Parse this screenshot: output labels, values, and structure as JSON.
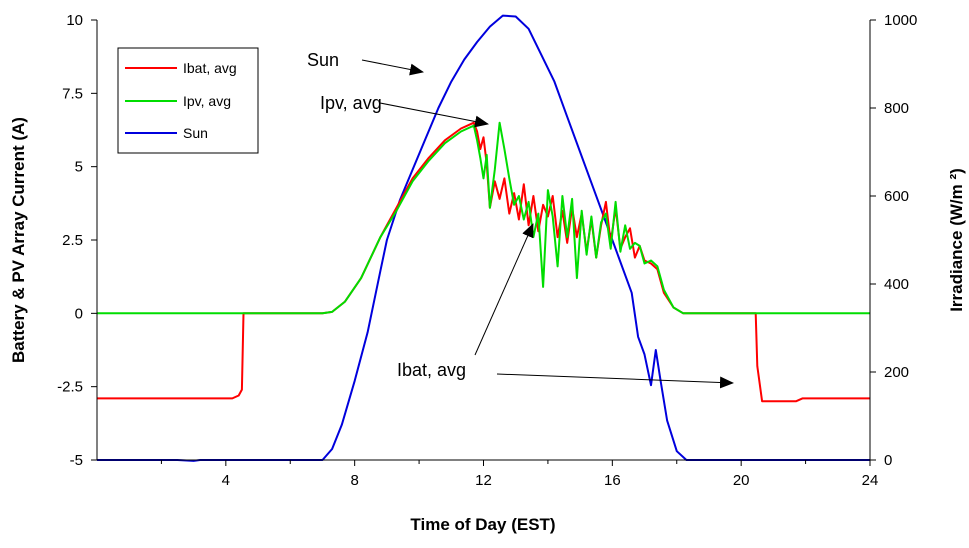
{
  "chart_data": {
    "type": "line",
    "xlabel": "Time of Day (EST)",
    "ylabel": "Battery & PV Array Current (A)",
    "y2label": "Irradiance (W/m ²)",
    "xlim": [
      0,
      24
    ],
    "ylim": [
      -5,
      10
    ],
    "y2lim": [
      0,
      1000
    ],
    "x_ticks": [
      4,
      8,
      12,
      16,
      20,
      24
    ],
    "y_ticks": [
      -5,
      -2.5,
      0,
      2.5,
      5,
      7.5,
      10
    ],
    "y_tick_labels": [
      "-5",
      "-2.5",
      "0",
      "2.5",
      "5",
      "7.5",
      "10"
    ],
    "y2_ticks": [
      0,
      200,
      400,
      600,
      800,
      1000
    ],
    "grid": false,
    "legend_position": "top-left",
    "legend": [
      "Ibat, avg",
      "Ipv, avg",
      "Sun"
    ],
    "series": [
      {
        "name": "Ibat, avg",
        "axis": "left",
        "color": "#ff0000",
        "points": [
          [
            0,
            -2.9
          ],
          [
            4.2,
            -2.9
          ],
          [
            4.4,
            -2.8
          ],
          [
            4.5,
            -2.6
          ],
          [
            4.55,
            0
          ],
          [
            7.0,
            0
          ],
          [
            7.3,
            0.05
          ],
          [
            7.7,
            0.4
          ],
          [
            8.2,
            1.2
          ],
          [
            8.8,
            2.6
          ],
          [
            9.3,
            3.6
          ],
          [
            9.8,
            4.6
          ],
          [
            10.3,
            5.3
          ],
          [
            10.8,
            5.9
          ],
          [
            11.3,
            6.3
          ],
          [
            11.7,
            6.5
          ],
          [
            11.8,
            6.2
          ],
          [
            11.9,
            5.6
          ],
          [
            12.0,
            6.0
          ],
          [
            12.1,
            5.1
          ],
          [
            12.2,
            3.6
          ],
          [
            12.35,
            4.5
          ],
          [
            12.5,
            3.9
          ],
          [
            12.65,
            4.6
          ],
          [
            12.8,
            3.4
          ],
          [
            12.95,
            4.1
          ],
          [
            13.1,
            3.2
          ],
          [
            13.25,
            4.4
          ],
          [
            13.4,
            3.0
          ],
          [
            13.55,
            4.0
          ],
          [
            13.7,
            2.8
          ],
          [
            13.85,
            3.7
          ],
          [
            14.0,
            3.3
          ],
          [
            14.15,
            4.0
          ],
          [
            14.3,
            2.6
          ],
          [
            14.45,
            3.5
          ],
          [
            14.6,
            2.4
          ],
          [
            14.75,
            3.6
          ],
          [
            14.9,
            2.6
          ],
          [
            15.05,
            3.4
          ],
          [
            15.2,
            2.1
          ],
          [
            15.35,
            3.2
          ],
          [
            15.5,
            1.9
          ],
          [
            15.65,
            3.0
          ],
          [
            15.8,
            3.8
          ],
          [
            15.95,
            2.4
          ],
          [
            16.1,
            3.6
          ],
          [
            16.25,
            2.2
          ],
          [
            16.4,
            2.6
          ],
          [
            16.55,
            2.9
          ],
          [
            16.7,
            1.9
          ],
          [
            16.85,
            2.3
          ],
          [
            17.0,
            1.8
          ],
          [
            17.2,
            1.7
          ],
          [
            17.4,
            1.5
          ],
          [
            17.6,
            0.7
          ],
          [
            17.9,
            0.2
          ],
          [
            18.2,
            0
          ],
          [
            20.45,
            0
          ],
          [
            20.5,
            -1.8
          ],
          [
            20.65,
            -3.0
          ],
          [
            21.7,
            -3.0
          ],
          [
            21.9,
            -2.9
          ],
          [
            24,
            -2.9
          ]
        ]
      },
      {
        "name": "Ipv, avg",
        "axis": "left",
        "color": "#00dd00",
        "points": [
          [
            0,
            0
          ],
          [
            7.0,
            0
          ],
          [
            7.3,
            0.05
          ],
          [
            7.7,
            0.4
          ],
          [
            8.2,
            1.2
          ],
          [
            8.8,
            2.6
          ],
          [
            9.3,
            3.5
          ],
          [
            9.8,
            4.5
          ],
          [
            10.3,
            5.2
          ],
          [
            10.8,
            5.8
          ],
          [
            11.3,
            6.2
          ],
          [
            11.7,
            6.4
          ],
          [
            11.8,
            5.9
          ],
          [
            11.9,
            5.3
          ],
          [
            12.0,
            4.6
          ],
          [
            12.1,
            5.4
          ],
          [
            12.2,
            3.6
          ],
          [
            12.35,
            4.9
          ],
          [
            12.5,
            6.5
          ],
          [
            12.65,
            5.6
          ],
          [
            12.8,
            4.6
          ],
          [
            12.95,
            3.7
          ],
          [
            13.1,
            4.0
          ],
          [
            13.25,
            3.2
          ],
          [
            13.4,
            3.8
          ],
          [
            13.55,
            2.6
          ],
          [
            13.7,
            3.4
          ],
          [
            13.85,
            0.9
          ],
          [
            14.0,
            4.2
          ],
          [
            14.15,
            3.3
          ],
          [
            14.3,
            1.6
          ],
          [
            14.45,
            4.0
          ],
          [
            14.6,
            2.6
          ],
          [
            14.75,
            3.9
          ],
          [
            14.9,
            1.2
          ],
          [
            15.05,
            3.5
          ],
          [
            15.2,
            2.0
          ],
          [
            15.35,
            3.3
          ],
          [
            15.5,
            1.9
          ],
          [
            15.65,
            3.1
          ],
          [
            15.8,
            3.4
          ],
          [
            15.95,
            2.2
          ],
          [
            16.1,
            3.8
          ],
          [
            16.25,
            2.1
          ],
          [
            16.4,
            3.0
          ],
          [
            16.55,
            2.2
          ],
          [
            16.7,
            2.4
          ],
          [
            16.85,
            2.3
          ],
          [
            17.0,
            1.7
          ],
          [
            17.2,
            1.8
          ],
          [
            17.4,
            1.6
          ],
          [
            17.6,
            0.8
          ],
          [
            17.9,
            0.2
          ],
          [
            18.2,
            0
          ],
          [
            24,
            0
          ]
        ]
      },
      {
        "name": "Sun",
        "axis": "right",
        "color": "#0000dd",
        "points": [
          [
            0,
            0
          ],
          [
            2.5,
            0
          ],
          [
            3.0,
            -2
          ],
          [
            3.2,
            0
          ],
          [
            7.0,
            0
          ],
          [
            7.3,
            25
          ],
          [
            7.6,
            80
          ],
          [
            8.0,
            180
          ],
          [
            8.4,
            290
          ],
          [
            8.8,
            430
          ],
          [
            9.0,
            500
          ],
          [
            9.4,
            590
          ],
          [
            9.8,
            660
          ],
          [
            10.2,
            730
          ],
          [
            10.6,
            800
          ],
          [
            11.0,
            860
          ],
          [
            11.4,
            910
          ],
          [
            11.8,
            950
          ],
          [
            12.2,
            985
          ],
          [
            12.6,
            1010
          ],
          [
            13.0,
            1008
          ],
          [
            13.4,
            980
          ],
          [
            13.8,
            920
          ],
          [
            14.2,
            860
          ],
          [
            14.6,
            780
          ],
          [
            15.0,
            700
          ],
          [
            15.4,
            620
          ],
          [
            15.8,
            540
          ],
          [
            16.2,
            460
          ],
          [
            16.6,
            380
          ],
          [
            16.8,
            280
          ],
          [
            17.0,
            240
          ],
          [
            17.2,
            170
          ],
          [
            17.35,
            250
          ],
          [
            17.5,
            180
          ],
          [
            17.7,
            90
          ],
          [
            18.0,
            20
          ],
          [
            18.3,
            0
          ],
          [
            24,
            0
          ]
        ]
      }
    ],
    "annotations": [
      {
        "text": "Sun",
        "series": "Sun"
      },
      {
        "text": "Ipv, avg",
        "series": "Ipv, avg"
      },
      {
        "text": "Ibat, avg",
        "series": "Ibat, avg"
      }
    ]
  }
}
